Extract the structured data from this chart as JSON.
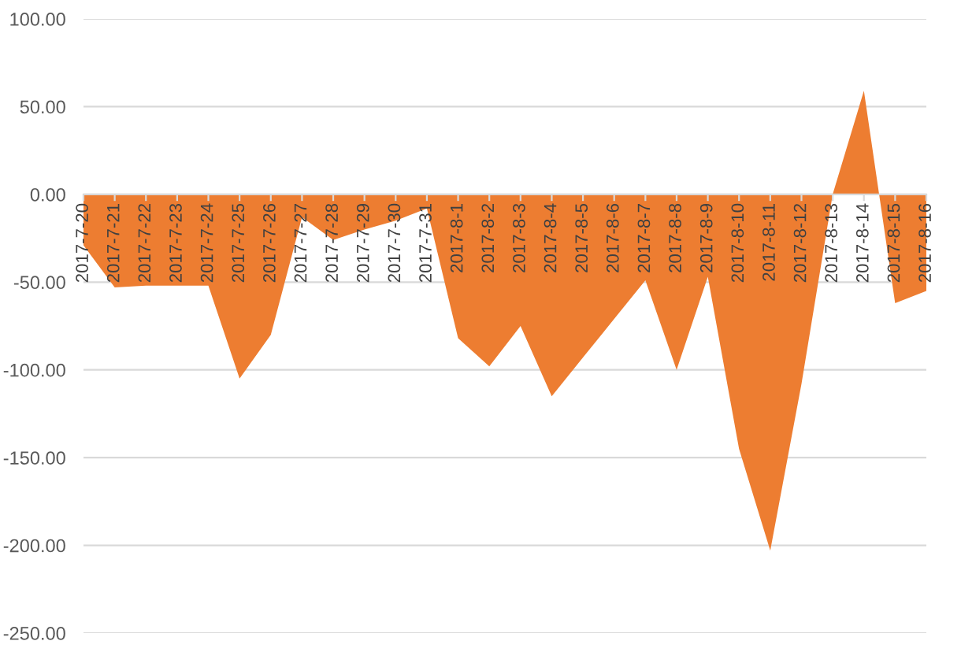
{
  "chart_data": {
    "type": "area",
    "categories": [
      "2017-7-20",
      "2017-7-21",
      "2017-7-22",
      "2017-7-23",
      "2017-7-24",
      "2017-7-25",
      "2017-7-26",
      "2017-7-27",
      "2017-7-28",
      "2017-7-29",
      "2017-7-30",
      "2017-7-31",
      "2017-8-1",
      "2017-8-2",
      "2017-8-3",
      "2017-8-4",
      "2017-8-5",
      "2017-8-6",
      "2017-8-7",
      "2017-8-8",
      "2017-8-9",
      "2017-8-10",
      "2017-8-11",
      "2017-8-12",
      "2017-8-13",
      "2017-8-14",
      "2017-8-15",
      "2017-8-16"
    ],
    "values": [
      -29,
      -53,
      -52,
      -52,
      -52,
      -105,
      -80,
      -13,
      -26,
      -20,
      -15,
      -8,
      -82,
      -98,
      -75,
      -115,
      -93,
      -71,
      -49,
      -100,
      -47,
      -145,
      -203,
      -108,
      0,
      59,
      -62,
      -55
    ],
    "color": "#ed7d31",
    "ylim": [
      -250,
      100
    ],
    "yticks": [
      {
        "value": -250,
        "label": "-250.00"
      },
      {
        "value": -200,
        "label": "-200.00"
      },
      {
        "value": -150,
        "label": "-150.00"
      },
      {
        "value": -100,
        "label": "-100.00"
      },
      {
        "value": -50,
        "label": "-50.00"
      },
      {
        "value": 0,
        "label": "0.00"
      },
      {
        "value": 50,
        "label": "50.00"
      },
      {
        "value": 100,
        "label": "100.00"
      }
    ],
    "grid": "y"
  }
}
